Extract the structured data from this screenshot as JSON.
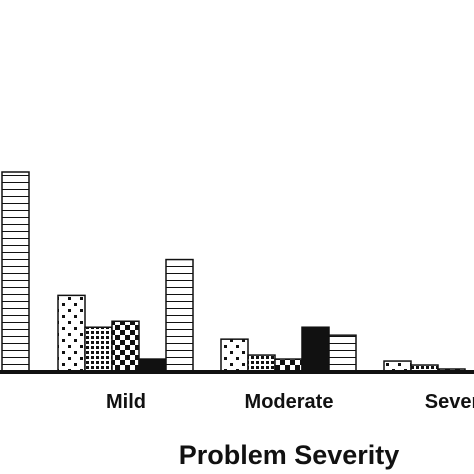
{
  "chart_data": {
    "type": "bar",
    "xlabel": "Problem Severity",
    "ylabel": "",
    "categories": [
      "",
      "Mild",
      "Moderate",
      "Severe"
    ],
    "category_tick_labels": [
      "",
      "Mild",
      "Moderate",
      "Sever"
    ],
    "ylim": [
      0,
      100
    ],
    "grid": false,
    "legend": "none",
    "bars": [
      {
        "category": "",
        "pattern": "horizontal-lines",
        "value": 100
      },
      {
        "category": "Mild",
        "pattern": "sparse-dots",
        "value": 38
      },
      {
        "category": "Mild",
        "pattern": "dense-grid",
        "value": 22
      },
      {
        "category": "Mild",
        "pattern": "checkerboard",
        "value": 25
      },
      {
        "category": "Mild",
        "pattern": "solid-black",
        "value": 6
      },
      {
        "category": "Mild",
        "pattern": "horizontal-lines",
        "value": 56
      },
      {
        "category": "Moderate",
        "pattern": "sparse-dots",
        "value": 16
      },
      {
        "category": "Moderate",
        "pattern": "dense-grid",
        "value": 8
      },
      {
        "category": "Moderate",
        "pattern": "checkerboard",
        "value": 6
      },
      {
        "category": "Moderate",
        "pattern": "solid-black",
        "value": 22
      },
      {
        "category": "Moderate",
        "pattern": "horizontal-lines",
        "value": 18
      },
      {
        "category": "Severe",
        "pattern": "sparse-dots",
        "value": 5
      },
      {
        "category": "Severe",
        "pattern": "dense-grid",
        "value": 3
      },
      {
        "category": "Severe",
        "pattern": "checkerboard",
        "value": 1
      }
    ],
    "colors": {
      "ink": "#111111",
      "background": "#ffffff"
    }
  }
}
